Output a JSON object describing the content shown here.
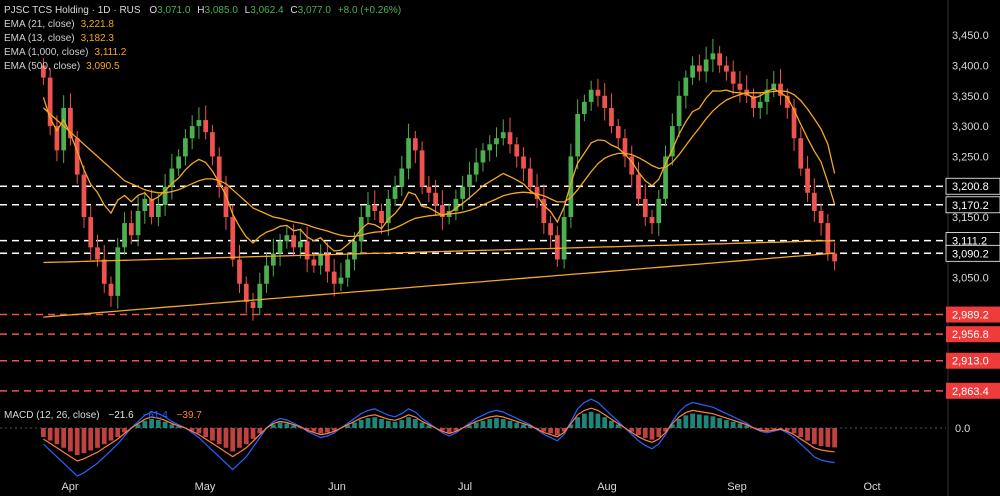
{
  "header": {
    "symbol": "PJSC TCS Holding",
    "interval": "1D",
    "exchange": "RUS",
    "ohlc_o_label": "O",
    "ohlc_o": "3,071.0",
    "ohlc_h_label": "H",
    "ohlc_h": "3,085.0",
    "ohlc_l_label": "L",
    "ohlc_l": "3,062.4",
    "ohlc_c_label": "C",
    "ohlc_c": "3,077.0",
    "change": "+8.0 (+0.26%)"
  },
  "indicators": [
    {
      "label": "EMA (21, close)",
      "value": "3,221.8",
      "color": "#f5a623"
    },
    {
      "label": "EMA (13, close)",
      "value": "3,182.3",
      "color": "#f5a623"
    },
    {
      "label": "EMA (1,000, close)",
      "value": "3,111.2",
      "color": "#f5a623"
    },
    {
      "label": "EMA (500, close)",
      "value": "3,090.5",
      "color": "#f5a623"
    }
  ],
  "macd": {
    "label": "MACD (12, 26, close)",
    "hist": "−21.6",
    "macd": "−61.4",
    "signal": "−39.7",
    "zero": "0.0"
  },
  "colors": {
    "up": "#4caf50",
    "down": "#ef5350",
    "ema": "#f5a623",
    "macd": "#2962ff",
    "signal": "#ff7f3f",
    "bg": "#000000"
  },
  "chart_data": {
    "type": "candlestick",
    "ylim": [
      2840,
      3475
    ],
    "y_ticks": [
      "3,050.0",
      "3,100.0",
      "3,150.0",
      "3,200.0",
      "3,250.0",
      "3,300.0",
      "3,350.0",
      "3,400.0",
      "3,450.0"
    ],
    "x_ticks": [
      "Apr",
      "May",
      "Jun",
      "Jul",
      "Aug",
      "Sep",
      "Oct"
    ],
    "levels": [
      {
        "value": 3200.8,
        "label": "3,200.8",
        "style": "white"
      },
      {
        "value": 3170.2,
        "label": "3,170.2",
        "style": "white"
      },
      {
        "value": 3111.2,
        "label": "3,111.2",
        "style": "white"
      },
      {
        "value": 3090.2,
        "label": "3,090.2",
        "style": "white"
      },
      {
        "value": 2989.2,
        "label": "2,989.2",
        "style": "red"
      },
      {
        "value": 2956.8,
        "label": "2,956.8",
        "style": "red"
      },
      {
        "value": 2913.0,
        "label": "2,913.0",
        "style": "red"
      },
      {
        "value": 2863.4,
        "label": "2,863.4",
        "style": "red"
      }
    ],
    "closes": [
      3380,
      3300,
      3260,
      3330,
      3280,
      3220,
      3150,
      3100,
      3080,
      3040,
      3020,
      3100,
      3140,
      3120,
      3160,
      3180,
      3150,
      3170,
      3200,
      3230,
      3250,
      3280,
      3300,
      3310,
      3290,
      3250,
      3200,
      3150,
      3080,
      3040,
      3010,
      3000,
      3040,
      3070,
      3090,
      3110,
      3120,
      3100,
      3110,
      3080,
      3070,
      3090,
      3060,
      3040,
      3050,
      3080,
      3110,
      3150,
      3170,
      3160,
      3140,
      3180,
      3200,
      3230,
      3280,
      3260,
      3200,
      3190,
      3170,
      3150,
      3160,
      3180,
      3200,
      3220,
      3240,
      3260,
      3270,
      3280,
      3290,
      3270,
      3250,
      3230,
      3200,
      3180,
      3140,
      3120,
      3080,
      3150,
      3250,
      3320,
      3340,
      3360,
      3350,
      3330,
      3300,
      3280,
      3250,
      3220,
      3180,
      3150,
      3140,
      3180,
      3250,
      3300,
      3350,
      3380,
      3400,
      3390,
      3410,
      3420,
      3400,
      3390,
      3370,
      3360,
      3350,
      3330,
      3340,
      3360,
      3370,
      3350,
      3330,
      3280,
      3230,
      3190,
      3160,
      3140,
      3090,
      3077
    ],
    "ema21": [
      3330,
      3320,
      3310,
      3300,
      3290,
      3280,
      3270,
      3260,
      3250,
      3240,
      3230,
      3220,
      3210,
      3205,
      3200,
      3195,
      3192,
      3190,
      3190,
      3192,
      3195,
      3200,
      3205,
      3210,
      3213,
      3213,
      3210,
      3205,
      3195,
      3185,
      3175,
      3165,
      3160,
      3155,
      3150,
      3148,
      3145,
      3142,
      3140,
      3137,
      3133,
      3130,
      3127,
      3123,
      3120,
      3118,
      3118,
      3120,
      3123,
      3125,
      3126,
      3128,
      3132,
      3137,
      3143,
      3148,
      3150,
      3152,
      3153,
      3154,
      3155,
      3156,
      3158,
      3161,
      3165,
      3170,
      3175,
      3180,
      3185,
      3188,
      3190,
      3191,
      3190,
      3188,
      3185,
      3180,
      3175,
      3175,
      3182,
      3195,
      3210,
      3225,
      3238,
      3247,
      3252,
      3255,
      3255,
      3253,
      3248,
      3242,
      3235,
      3230,
      3232,
      3240,
      3253,
      3268,
      3283,
      3297,
      3312,
      3325,
      3335,
      3343,
      3348,
      3352,
      3355,
      3355,
      3355,
      3356,
      3357,
      3358,
      3357,
      3352,
      3342,
      3328,
      3312,
      3295,
      3270,
      3221.8
    ],
    "macd_hist": [
      -10,
      -14,
      -18,
      -22,
      -26,
      -30,
      -28,
      -25,
      -22,
      -18,
      -14,
      -10,
      -5,
      0,
      4,
      8,
      10,
      9,
      7,
      4,
      2,
      0,
      -3,
      -6,
      -10,
      -14,
      -18,
      -22,
      -26,
      -22,
      -18,
      -12,
      -6,
      0,
      4,
      6,
      5,
      3,
      1,
      -2,
      -4,
      -6,
      -5,
      -3,
      0,
      3,
      6,
      9,
      11,
      12,
      10,
      8,
      7,
      9,
      12,
      10,
      6,
      3,
      0,
      -3,
      -5,
      -3,
      0,
      3,
      6,
      8,
      10,
      11,
      10,
      8,
      6,
      4,
      2,
      -1,
      -4,
      -6,
      -8,
      -4,
      4,
      12,
      16,
      18,
      16,
      12,
      8,
      4,
      0,
      -4,
      -8,
      -11,
      -13,
      -10,
      -4,
      4,
      10,
      14,
      16,
      15,
      14,
      13,
      11,
      9,
      7,
      5,
      3,
      0,
      -2,
      -3,
      -2,
      -1,
      -3,
      -6,
      -10,
      -14,
      -18,
      -20,
      -21,
      -21.6
    ]
  }
}
